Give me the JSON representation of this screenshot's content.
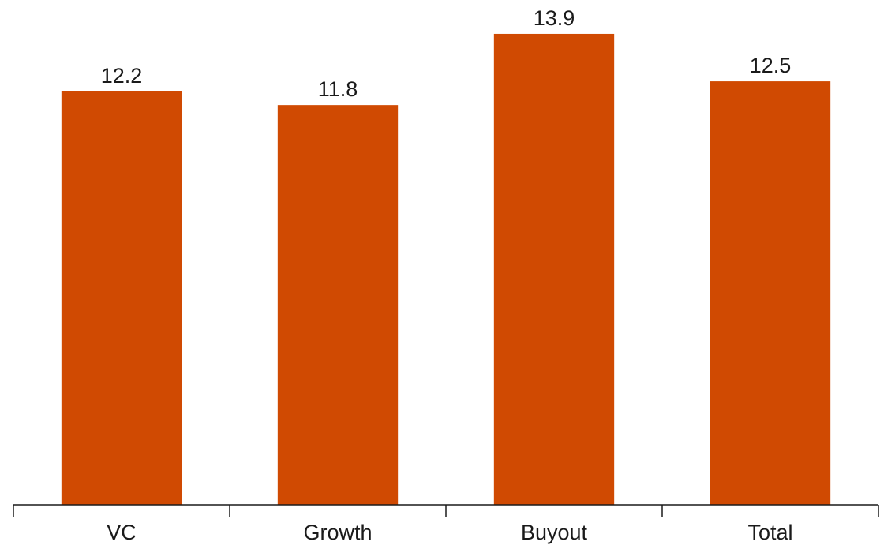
{
  "chart_data": {
    "type": "bar",
    "categories": [
      "VC",
      "Growth",
      "Buyout",
      "Total"
    ],
    "values": [
      12.2,
      11.8,
      13.9,
      12.5
    ],
    "data_labels": [
      "12.2",
      "11.8",
      "13.9",
      "12.5"
    ],
    "title": "",
    "xlabel": "",
    "ylabel": "",
    "ylim": [
      0,
      14.9
    ],
    "grid": false,
    "legend": "none",
    "bar_color": "#D04A02"
  }
}
